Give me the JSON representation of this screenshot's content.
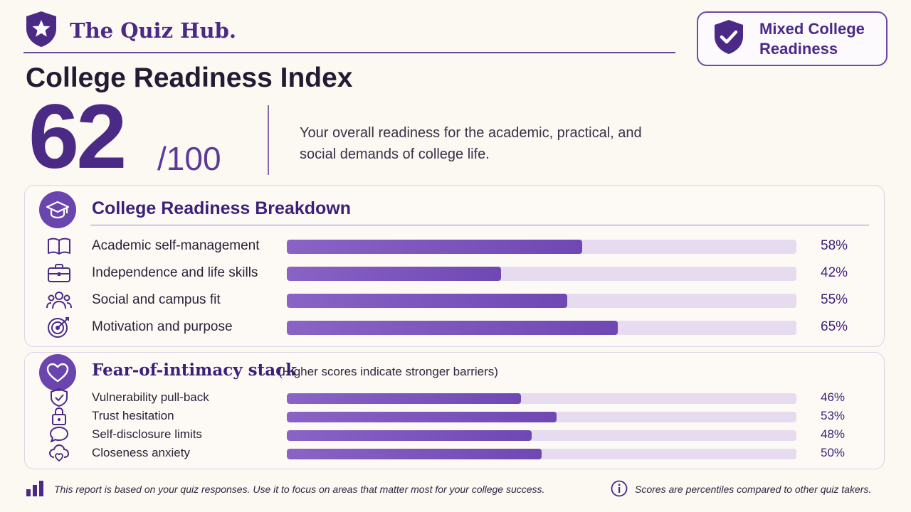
{
  "brand": {
    "name": "The Quiz Hub."
  },
  "badge": {
    "label": "Mixed College Readiness"
  },
  "page": {
    "title": "College Readiness Index"
  },
  "score": {
    "value": "62",
    "denominator": "/100",
    "description": "Your overall readiness for the academic, practical, and social demands of college life."
  },
  "breakdown": {
    "title": "College Readiness Breakdown",
    "items": [
      {
        "label": "Academic self-management",
        "value": 58,
        "display": "58%",
        "icon": "book-icon"
      },
      {
        "label": "Independence and life skills",
        "value": 42,
        "display": "42%",
        "icon": "briefcase-icon"
      },
      {
        "label": "Social and campus fit",
        "value": 55,
        "display": "55%",
        "icon": "people-icon"
      },
      {
        "label": "Motivation and purpose",
        "value": 65,
        "display": "65%",
        "icon": "target-icon"
      }
    ]
  },
  "intimacy": {
    "title": "Fear-of-intimacy stack",
    "note": "(Higher scores indicate stronger barriers)",
    "items": [
      {
        "label": "Vulnerability pull-back",
        "value": 46,
        "display": "46%",
        "icon": "shield-check-icon"
      },
      {
        "label": "Trust hesitation",
        "value": 53,
        "display": "53%",
        "icon": "lock-icon"
      },
      {
        "label": "Self-disclosure limits",
        "value": 48,
        "display": "48%",
        "icon": "speech-bubble-icon"
      },
      {
        "label": "Closeness anxiety",
        "value": 50,
        "display": "50%",
        "icon": "cloud-heart-icon"
      }
    ]
  },
  "footer": {
    "left": "This report is based on your quiz responses. Use it to focus on areas that matter most for your college success.",
    "right": "Scores are percentiles compared to other quiz takers."
  },
  "colors": {
    "accent": "#4b2a86",
    "bar": "#7a55bb",
    "track": "#e6dbef",
    "background": "#fcf8f2"
  }
}
